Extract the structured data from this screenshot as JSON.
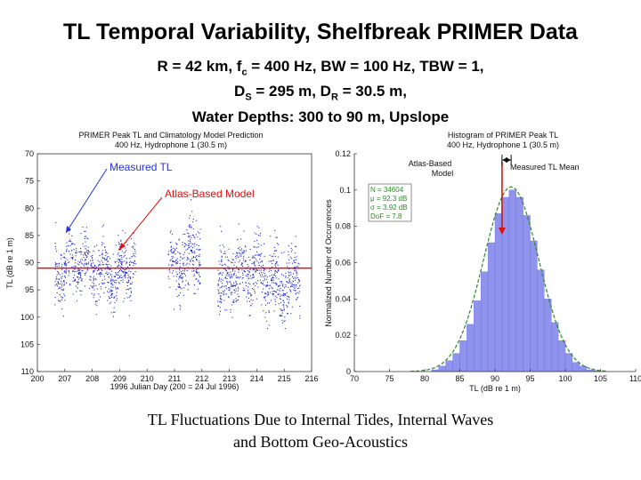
{
  "title": "TL Temporal Variability, Shelfbreak PRIMER Data",
  "params": {
    "line1_a": "R = 42 km, f",
    "line1_sub": "c",
    "line1_b": " = 400 Hz, BW = 100 Hz, TBW = 1,",
    "line2_a": "D",
    "line2_sub1": "S",
    "line2_b": " = 295 m, D",
    "line2_sub2": "R",
    "line2_c": " = 30.5 m,",
    "line3": "Water Depths: 300 to 90 m, Upslope"
  },
  "caption": {
    "line1": "TL Fluctuations Due to Internal Tides, Internal Waves",
    "line2": "and Bottom Geo-Acoustics"
  },
  "colors": {
    "data": "#1f2ad0",
    "model": "#e01010",
    "bars": "#8f93ec",
    "fit": "#2a8a2a",
    "annot_blue": "#2233dd"
  },
  "chart_data": [
    {
      "type": "scatter",
      "title": "PRIMER Peak TL and Climatology Model Prediction",
      "subtitle": "400 Hz, Hydrophone 1 (30.5 m)",
      "xlabel": "1996 Julian Day (200 = 24 Jul 1996)",
      "ylabel": "TL (dB re 1 m)",
      "xlim": [
        200,
        216
      ],
      "ylim": [
        110,
        70
      ],
      "y_inverted": true,
      "xticks": [
        "200",
        "207",
        "208",
        "209",
        "210",
        "211",
        "212",
        "213",
        "214",
        "215",
        "216"
      ],
      "yticks": [
        "70",
        "75",
        "80",
        "85",
        "90",
        "95",
        "100",
        "105",
        "110"
      ],
      "annotations": [
        "Measured TL",
        "Atlas-Based Model"
      ],
      "series": [
        {
          "name": "Measured TL",
          "segments": [
            {
              "x": [
                201.0,
                205.7
              ],
              "center": 91.0,
              "spread": 5
            },
            {
              "x": [
                207.6,
                209.5
              ],
              "center": 90.0,
              "spread": 6
            },
            {
              "x": [
                210.5,
                215.3
              ],
              "center": 92.5,
              "spread": 6
            }
          ]
        },
        {
          "name": "Atlas-Based Model",
          "y": 91
        }
      ]
    },
    {
      "type": "histogram",
      "title": "Histogram of PRIMER Peak TL",
      "subtitle": "400 Hz, Hydrophone 1 (30.5 m)",
      "xlabel": "TL (dB re 1 m)",
      "ylabel": "Normalized Number of Occurrences",
      "xlim": [
        70,
        110
      ],
      "ylim": [
        0,
        0.12
      ],
      "xticks": [
        "70",
        "75",
        "80",
        "85",
        "90",
        "95",
        "100",
        "105",
        "110"
      ],
      "yticks": [
        "0",
        "0.02",
        "0.04",
        "0.06",
        "0.08",
        "0.1",
        "0.12"
      ],
      "bin_edges": [
        81,
        82,
        83,
        84,
        85,
        86,
        87,
        88,
        89,
        90,
        91,
        92,
        93,
        94,
        95,
        96,
        97,
        98,
        99,
        100,
        101,
        102,
        103,
        104,
        105
      ],
      "values": [
        0.001,
        0.003,
        0.006,
        0.01,
        0.017,
        0.026,
        0.039,
        0.055,
        0.071,
        0.087,
        0.096,
        0.1,
        0.096,
        0.086,
        0.072,
        0.056,
        0.04,
        0.027,
        0.017,
        0.01,
        0.005,
        0.003,
        0.001,
        0.0005
      ],
      "fit": {
        "mean": 92.3,
        "sigma": 3.92
      },
      "stats": [
        "N = 34604",
        "μ = 92.3 dB",
        "σ = 3.92 dB",
        "DoF = 7.8"
      ],
      "annotations": {
        "atlas": [
          "Atlas-Based",
          "Model"
        ],
        "atlas_value": 91,
        "mean": "Measured TL Mean",
        "mean_value": 92.3
      }
    }
  ]
}
